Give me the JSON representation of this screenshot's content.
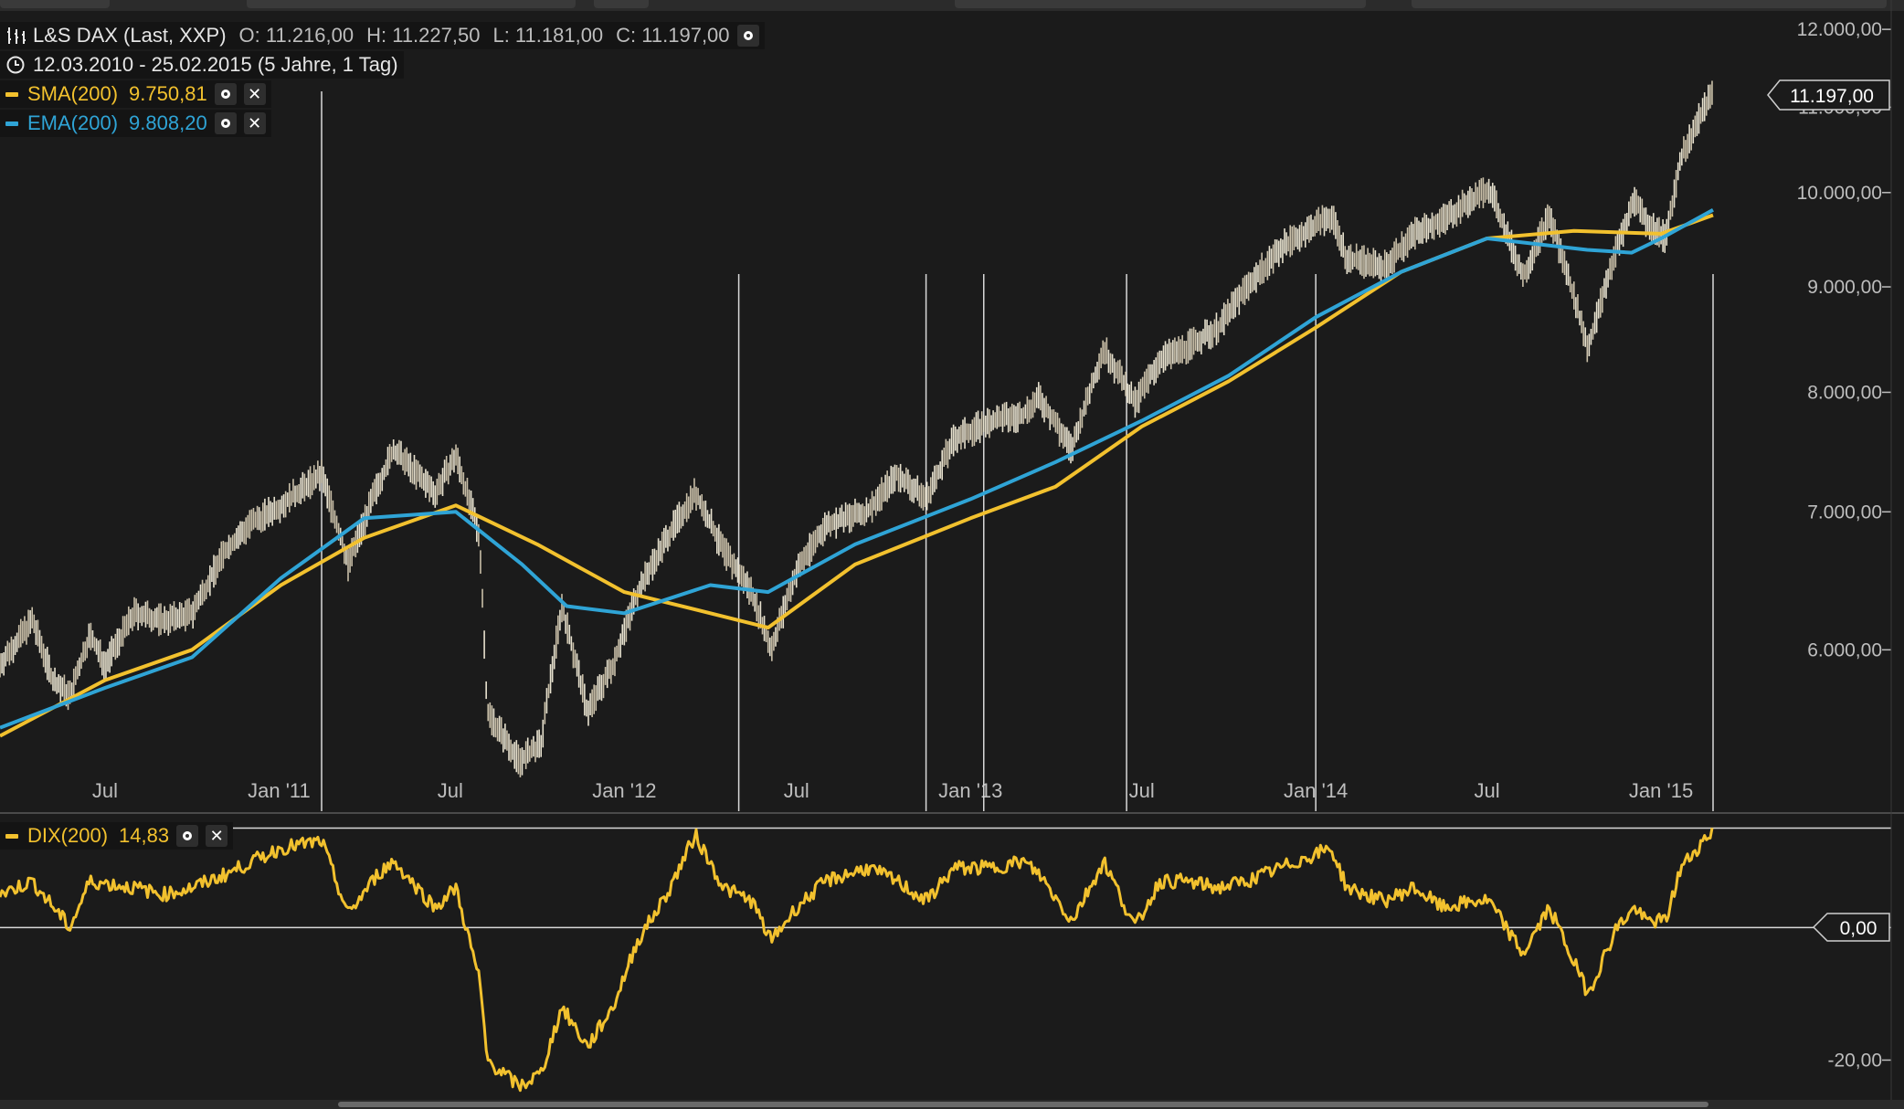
{
  "header": {
    "instrument": "L&S DAX (Last, XXP)",
    "open": "O: 11.216,00",
    "high": "H: 11.227,50",
    "low": "L: 11.181,00",
    "close": "C: 11.197,00",
    "period": "12.03.2010 - 25.02.2015 (5 Jahre, 1 Tag)"
  },
  "indicators": [
    {
      "name": "SMA(200)",
      "value": "9.750,81",
      "color": "#f2c12e"
    },
    {
      "name": "EMA(200)",
      "value": "9.808,20",
      "color": "#2fa4d6"
    },
    {
      "name": "DIX(200)",
      "value": "14,83",
      "color": "#f2c12e"
    }
  ],
  "price_tag": "11.197,00",
  "dix_tag": "0,00",
  "icons": {
    "bars": "bar-chart-icon",
    "clock": "clock-icon",
    "settings": "circle-settings-icon",
    "close": "close-x-icon"
  },
  "colors": {
    "background": "#1b1b1b",
    "price": "#e8e2cf",
    "sma": "#f2c12e",
    "ema": "#2fa4d6",
    "dix": "#f2c12e",
    "grid": "#d9d9d9"
  },
  "chart_data": [
    {
      "type": "line",
      "series": [
        {
          "name": "L&S DAX (Last, XXP)",
          "x": [
            "2010-03-12",
            "2010-04-15",
            "2010-05-07",
            "2010-05-25",
            "2010-06-15",
            "2010-07-01",
            "2010-08-01",
            "2010-09-01",
            "2010-10-01",
            "2010-11-05",
            "2010-12-01",
            "2011-01-03",
            "2011-02-15",
            "2011-03-15",
            "2011-04-15",
            "2011-05-02",
            "2011-06-15",
            "2011-07-07",
            "2011-08-01",
            "2011-08-09",
            "2011-09-12",
            "2011-10-05",
            "2011-10-27",
            "2011-11-23",
            "2011-12-20",
            "2012-01-15",
            "2012-02-15",
            "2012-03-16",
            "2012-04-15",
            "2012-05-15",
            "2012-06-04",
            "2012-07-01",
            "2012-08-01",
            "2012-09-14",
            "2012-10-15",
            "2012-11-15",
            "2012-12-15",
            "2013-01-25",
            "2013-02-25",
            "2013-03-15",
            "2013-04-18",
            "2013-05-22",
            "2013-06-24",
            "2013-07-20",
            "2013-08-15",
            "2013-09-20",
            "2013-10-20",
            "2013-11-25",
            "2014-01-17",
            "2014-02-03",
            "2014-03-14",
            "2014-04-15",
            "2014-05-15",
            "2014-06-20",
            "2014-07-03",
            "2014-08-08",
            "2014-09-05",
            "2014-10-16",
            "2014-11-15",
            "2014-12-05",
            "2014-12-15",
            "2015-01-06",
            "2015-01-22",
            "2015-02-25"
          ],
          "y": [
            5900,
            6200,
            5800,
            5700,
            6100,
            5900,
            6250,
            6200,
            6250,
            6700,
            6900,
            7050,
            7300,
            6600,
            7200,
            7500,
            7150,
            7450,
            6800,
            5600,
            5300,
            5400,
            6300,
            5600,
            5900,
            6400,
            6800,
            7150,
            6700,
            6400,
            6000,
            6550,
            6900,
            7000,
            7300,
            7100,
            7600,
            7750,
            7800,
            7950,
            7500,
            8400,
            7900,
            8300,
            8400,
            8600,
            9000,
            9400,
            9750,
            9300,
            9200,
            9550,
            9700,
            9950,
            10050,
            9100,
            9750,
            8400,
            9400,
            9950,
            9700,
            9500,
            10400,
            11197
          ]
        },
        {
          "name": "SMA(200)",
          "x": [
            "2010-03-12",
            "2010-07-01",
            "2010-10-01",
            "2011-01-03",
            "2011-04-01",
            "2011-07-07",
            "2011-10-01",
            "2012-01-01",
            "2012-04-01",
            "2012-06-01",
            "2012-09-01",
            "2013-01-01",
            "2013-04-01",
            "2013-07-01",
            "2013-10-01",
            "2014-01-01",
            "2014-04-01",
            "2014-07-01",
            "2014-10-01",
            "2015-01-01",
            "2015-02-25"
          ],
          "y": [
            5450,
            5800,
            6000,
            6450,
            6800,
            7050,
            6750,
            6400,
            6250,
            6150,
            6600,
            6950,
            7200,
            7700,
            8100,
            8600,
            9150,
            9500,
            9580,
            9550,
            9750.81
          ]
        },
        {
          "name": "EMA(200)",
          "x": [
            "2010-03-12",
            "2010-07-01",
            "2010-10-01",
            "2011-01-03",
            "2011-04-01",
            "2011-07-07",
            "2011-09-15",
            "2011-11-01",
            "2012-01-01",
            "2012-04-01",
            "2012-06-01",
            "2012-09-01",
            "2013-01-01",
            "2013-04-01",
            "2013-07-01",
            "2013-10-01",
            "2014-01-01",
            "2014-04-01",
            "2014-07-01",
            "2014-10-15",
            "2014-12-01",
            "2015-01-01",
            "2015-02-25"
          ],
          "y": [
            5500,
            5750,
            5950,
            6500,
            6950,
            7000,
            6600,
            6300,
            6250,
            6450,
            6400,
            6750,
            7100,
            7400,
            7750,
            8150,
            8700,
            9150,
            9500,
            9380,
            9350,
            9500,
            9808.2
          ]
        }
      ],
      "ylim": [
        5000,
        12400
      ],
      "yticks": [
        "6.000,00",
        "7.000,00",
        "8.000,00",
        "9.000,00",
        "10.000,00",
        "11.000,00",
        "12.000,00"
      ],
      "ytick_values": [
        6000,
        7000,
        8000,
        9000,
        10000,
        11000,
        12000
      ],
      "xticks": [
        "Jul",
        "Jan '11",
        "Jul",
        "Jan '12",
        "Jul",
        "Jan '13",
        "Jul",
        "Jan '14",
        "Jul",
        "Jan '15"
      ],
      "xtick_dates": [
        "2010-07-01",
        "2011-01-01",
        "2011-07-01",
        "2012-01-01",
        "2012-07-01",
        "2013-01-01",
        "2013-07-01",
        "2014-01-01",
        "2014-07-01",
        "2015-01-01"
      ],
      "vertical_markers": [
        "2011-02-15",
        "2012-05-01",
        "2012-11-15",
        "2013-01-15",
        "2013-06-15",
        "2014-01-01",
        "2015-02-25"
      ],
      "grid": false
    },
    {
      "type": "line",
      "series": [
        {
          "name": "DIX(200)",
          "x": [
            "2010-03-12",
            "2010-04-15",
            "2010-05-25",
            "2010-06-15",
            "2010-08-01",
            "2010-09-01",
            "2010-10-01",
            "2010-11-05",
            "2011-01-03",
            "2011-02-15",
            "2011-03-15",
            "2011-04-15",
            "2011-05-02",
            "2011-06-15",
            "2011-07-07",
            "2011-08-01",
            "2011-08-09",
            "2011-09-12",
            "2011-10-05",
            "2011-10-27",
            "2011-11-23",
            "2011-12-20",
            "2012-01-15",
            "2012-02-15",
            "2012-03-16",
            "2012-04-15",
            "2012-05-15",
            "2012-06-04",
            "2012-07-01",
            "2012-08-01",
            "2012-09-14",
            "2012-10-15",
            "2012-11-15",
            "2012-12-15",
            "2013-01-25",
            "2013-02-25",
            "2013-03-15",
            "2013-04-18",
            "2013-05-22",
            "2013-06-24",
            "2013-07-20",
            "2013-08-15",
            "2013-09-20",
            "2013-10-20",
            "2013-11-25",
            "2014-01-17",
            "2014-02-03",
            "2014-03-14",
            "2014-04-15",
            "2014-05-15",
            "2014-06-20",
            "2014-07-03",
            "2014-08-08",
            "2014-09-05",
            "2014-10-16",
            "2014-11-15",
            "2014-12-05",
            "2014-12-15",
            "2015-01-06",
            "2015-01-22",
            "2015-02-25"
          ],
          "y": [
            5,
            7,
            0,
            7,
            6,
            5,
            6,
            8,
            12,
            13,
            2,
            8,
            10,
            3,
            6,
            -8,
            -20,
            -24,
            -22,
            -12,
            -18,
            -12,
            -2,
            5,
            14,
            6,
            4,
            -2,
            3,
            7,
            9,
            7,
            4,
            9,
            9,
            10,
            8,
            1,
            10,
            0,
            7,
            7,
            6,
            7,
            9,
            12,
            6,
            4,
            6,
            3,
            4,
            4,
            -4,
            3,
            -10,
            0,
            3,
            1,
            1,
            9,
            14.83
          ]
        }
      ],
      "ylim": [
        -26,
        17
      ],
      "yticks": [
        "0,00",
        "-20,00"
      ],
      "ytick_values": [
        0,
        -20
      ],
      "reference_lines": [
        0,
        15
      ]
    }
  ]
}
